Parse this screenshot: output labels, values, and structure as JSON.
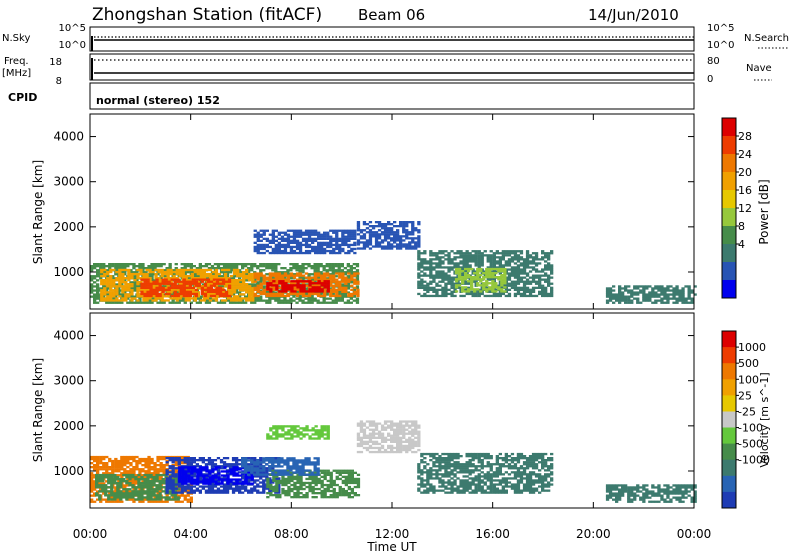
{
  "header": {
    "title": "Zhongshan Station (fitACF)",
    "beam": "Beam 06",
    "date": "14/Jun/2010"
  },
  "params": {
    "nsky_label": "N.Sky",
    "nsearch_label": "N.Search",
    "freq_label": "Freq.",
    "freq_unit": "[MHz]",
    "nave_label": "Nave",
    "cpid_label": "CPID",
    "cpid_value": "normal (stereo) 152",
    "noise_ticks_left": [
      "10^5",
      "10^0"
    ],
    "noise_ticks_right": [
      "10^5",
      "10^0"
    ],
    "freq_ticks": [
      "18",
      "8"
    ],
    "nave_ticks": [
      "80",
      "0"
    ]
  },
  "x_axis": {
    "label": "Time UT",
    "ticks": [
      "00:00",
      "04:00",
      "08:00",
      "12:00",
      "16:00",
      "20:00",
      "00:00"
    ]
  },
  "chart_data": [
    {
      "type": "heatmap",
      "panel": "power",
      "ylabel": "Slant Range [km]",
      "ylim": [
        180,
        4500
      ],
      "yticks": [
        "1000",
        "2000",
        "3000",
        "4000"
      ],
      "xlim_hours": [
        0,
        24
      ],
      "colorbar": {
        "label": "Power [dB]",
        "tick_labels": [
          "28",
          "24",
          "20",
          "16",
          "12",
          "8",
          "4"
        ],
        "colors": [
          "#0000ee",
          "#2854b4",
          "#3c7a6e",
          "#468c4a",
          "#96c83c",
          "#e6c800",
          "#f0a000",
          "#ee7800",
          "#ee3c00",
          "#dd0000"
        ]
      },
      "regions": [
        {
          "t0": 0.0,
          "t1": 10.6,
          "r0": 300,
          "r1": 1200,
          "color": "#468c4a"
        },
        {
          "t0": 0.4,
          "t1": 6.5,
          "r0": 350,
          "r1": 1050,
          "color": "#f0a000"
        },
        {
          "t0": 2.0,
          "t1": 5.5,
          "r0": 450,
          "r1": 850,
          "color": "#ee3c00"
        },
        {
          "t0": 6.5,
          "t1": 10.6,
          "r0": 450,
          "r1": 950,
          "color": "#ee7800"
        },
        {
          "t0": 7.0,
          "t1": 9.5,
          "r0": 550,
          "r1": 800,
          "color": "#dd0000"
        },
        {
          "t0": 10.6,
          "t1": 13.0,
          "r0": 1500,
          "r1": 2100,
          "color": "#2854b4"
        },
        {
          "t0": 13.0,
          "t1": 18.4,
          "r0": 450,
          "r1": 1450,
          "color": "#3c7a6e"
        },
        {
          "t0": 14.5,
          "t1": 16.5,
          "r0": 550,
          "r1": 1050,
          "color": "#96c83c"
        },
        {
          "t0": 6.5,
          "t1": 10.5,
          "r0": 1400,
          "r1": 1900,
          "color": "#2854b4"
        },
        {
          "t0": 20.5,
          "t1": 24.0,
          "r0": 300,
          "r1": 700,
          "color": "#3c7a6e"
        }
      ]
    },
    {
      "type": "heatmap",
      "panel": "velocity",
      "ylabel": "Slant Range [km]",
      "ylim": [
        180,
        4500
      ],
      "yticks": [
        "1000",
        "2000",
        "3000",
        "4000"
      ],
      "xlim_hours": [
        0,
        24
      ],
      "colorbar": {
        "label": "Velocity [m s^-1]",
        "tick_labels": [
          "1000",
          "500",
          "100",
          "25",
          "-25",
          "-100",
          "-500",
          "-1000"
        ],
        "colors": [
          "#1e3cb4",
          "#2864b4",
          "#3c7a6e",
          "#468c4a",
          "#64c83c",
          "#c8c8c8",
          "#e6c800",
          "#f0a000",
          "#ee7800",
          "#ee3c00",
          "#dd0000"
        ]
      },
      "regions": [
        {
          "t0": 0.0,
          "t1": 4.0,
          "r0": 300,
          "r1": 1300,
          "color": "#ee7800"
        },
        {
          "t0": 0.2,
          "t1": 3.5,
          "r0": 350,
          "r1": 900,
          "color": "#468c4a"
        },
        {
          "t0": 3.0,
          "t1": 7.5,
          "r0": 500,
          "r1": 1300,
          "color": "#1e3cb4"
        },
        {
          "t0": 3.5,
          "t1": 6.5,
          "r0": 700,
          "r1": 1100,
          "color": "#0000ee"
        },
        {
          "t0": 7.0,
          "t1": 10.6,
          "r0": 400,
          "r1": 1000,
          "color": "#468c4a"
        },
        {
          "t0": 6.0,
          "t1": 9.0,
          "r0": 900,
          "r1": 1300,
          "color": "#2864b4"
        },
        {
          "t0": 10.6,
          "t1": 13.0,
          "r0": 1400,
          "r1": 2100,
          "color": "#c8c8c8"
        },
        {
          "t0": 13.0,
          "t1": 18.4,
          "r0": 500,
          "r1": 1400,
          "color": "#3c7a6e"
        },
        {
          "t0": 7.0,
          "t1": 9.5,
          "r0": 1700,
          "r1": 2000,
          "color": "#64c83c"
        },
        {
          "t0": 20.5,
          "t1": 24.0,
          "r0": 300,
          "r1": 700,
          "color": "#3c7a6e"
        }
      ]
    }
  ]
}
